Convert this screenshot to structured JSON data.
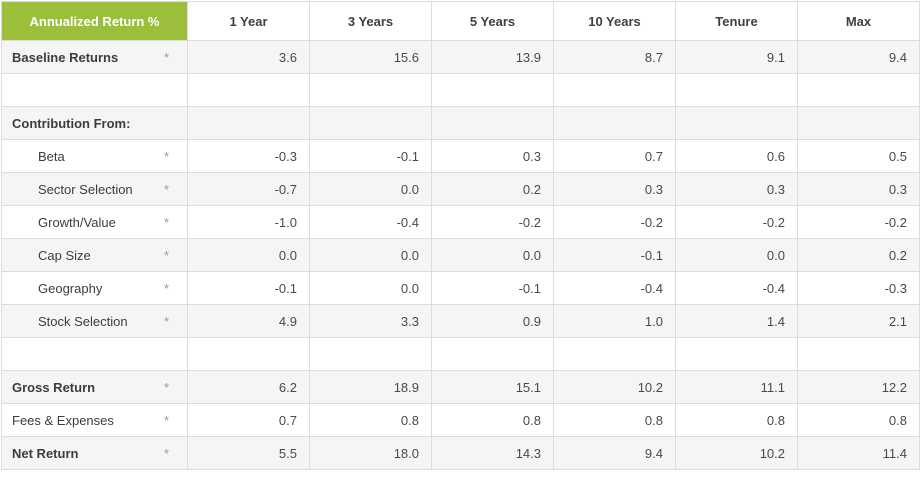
{
  "chart_data": {
    "type": "table",
    "title": "Annualized Return %",
    "columns": [
      "1 Year",
      "3 Years",
      "5 Years",
      "10 Years",
      "Tenure",
      "Max"
    ],
    "rows": [
      {
        "label": "Baseline Returns",
        "asterisk": "*",
        "values": [
          "3.6",
          "15.6",
          "13.9",
          "8.7",
          "9.1",
          "9.4"
        ]
      },
      {
        "label": "",
        "asterisk": "",
        "values": [
          "",
          "",
          "",
          "",
          "",
          ""
        ]
      },
      {
        "label": "Contribution From:",
        "asterisk": "",
        "values": [
          "",
          "",
          "",
          "",
          "",
          ""
        ]
      },
      {
        "label": "Beta",
        "asterisk": "*",
        "values": [
          "-0.3",
          "-0.1",
          "0.3",
          "0.7",
          "0.6",
          "0.5"
        ]
      },
      {
        "label": "Sector Selection",
        "asterisk": "*",
        "values": [
          "-0.7",
          "0.0",
          "0.2",
          "0.3",
          "0.3",
          "0.3"
        ]
      },
      {
        "label": "Growth/Value",
        "asterisk": "*",
        "values": [
          "-1.0",
          "-0.4",
          "-0.2",
          "-0.2",
          "-0.2",
          "-0.2"
        ]
      },
      {
        "label": "Cap Size",
        "asterisk": "*",
        "values": [
          "0.0",
          "0.0",
          "0.0",
          "-0.1",
          "0.0",
          "0.2"
        ]
      },
      {
        "label": "Geography",
        "asterisk": "*",
        "values": [
          "-0.1",
          "0.0",
          "-0.1",
          "-0.4",
          "-0.4",
          "-0.3"
        ]
      },
      {
        "label": "Stock Selection",
        "asterisk": "*",
        "values": [
          "4.9",
          "3.3",
          "0.9",
          "1.0",
          "1.4",
          "2.1"
        ]
      },
      {
        "label": "",
        "asterisk": "",
        "values": [
          "",
          "",
          "",
          "",
          "",
          ""
        ]
      },
      {
        "label": "Gross Return",
        "asterisk": "*",
        "values": [
          "6.2",
          "18.9",
          "15.1",
          "10.2",
          "11.1",
          "12.2"
        ]
      },
      {
        "label": "Fees & Expenses",
        "asterisk": "*",
        "values": [
          "0.7",
          "0.8",
          "0.8",
          "0.8",
          "0.8",
          "0.8"
        ]
      },
      {
        "label": "Net Return",
        "asterisk": "*",
        "values": [
          "5.5",
          "18.0",
          "14.3",
          "9.4",
          "10.2",
          "11.4"
        ]
      }
    ],
    "layout_hints": {
      "first_column_header_background": "#9cbf3b",
      "alternate_row_background": "#f5f5f5",
      "border_color": "#dcdcdc",
      "grid": true
    }
  }
}
